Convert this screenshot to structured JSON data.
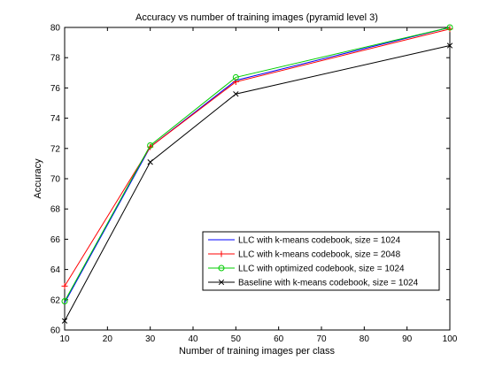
{
  "chart_data": {
    "type": "line",
    "title": "Accuracy vs number of training images (pyramid level 3)",
    "xlabel": "Number of training images per class",
    "ylabel": "Accuracy",
    "xlim": [
      10,
      100
    ],
    "ylim": [
      60,
      80
    ],
    "xticks": [
      10,
      20,
      30,
      40,
      50,
      60,
      70,
      80,
      90,
      100
    ],
    "yticks": [
      60,
      62,
      64,
      66,
      68,
      70,
      72,
      74,
      76,
      78,
      80
    ],
    "grid": false,
    "legend_position": "lower-right",
    "x": [
      10,
      30,
      50,
      100
    ],
    "series": [
      {
        "name": "LLC with k-means codebook, size = 1024",
        "color": "#0000ff",
        "marker": "none",
        "values": [
          61.8,
          72.1,
          76.5,
          80.0
        ]
      },
      {
        "name": "LLC with k-means codebook, size = 2048",
        "color": "#ff0000",
        "marker": "plus",
        "values": [
          62.9,
          72.1,
          76.4,
          79.9
        ]
      },
      {
        "name": "LLC with optimized codebook, size = 1024",
        "color": "#00cc00",
        "marker": "circle",
        "values": [
          61.9,
          72.2,
          76.7,
          80.0
        ]
      },
      {
        "name": "Baseline with k-means codebook, size = 1024",
        "color": "#000000",
        "marker": "x",
        "values": [
          60.6,
          71.1,
          75.6,
          78.8
        ]
      }
    ]
  }
}
